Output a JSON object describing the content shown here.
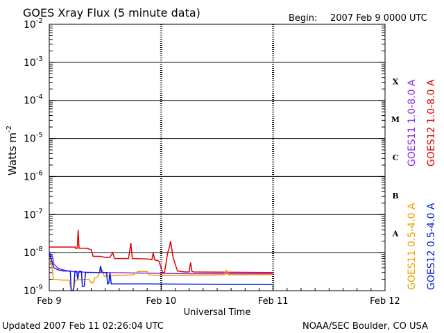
{
  "header": {
    "title": "GOES Xray Flux (5 minute data)",
    "begin_label": "Begin:",
    "begin_value": "2007 Feb 9 0000 UTC"
  },
  "footer": {
    "updated": "Updated 2007 Feb 11 02:26:04 UTC",
    "source": "NOAA/SEC Boulder, CO USA"
  },
  "chart_data": {
    "type": "line",
    "title": "GOES Xray Flux (5 minute data)",
    "xlabel": "Universal Time",
    "ylabel": "Watts m",
    "ylabel_superscript": "-2",
    "x_unit": "hours since 2007 Feb 9 0000 UTC",
    "xlim": [
      0,
      72
    ],
    "x_ticks": [
      {
        "x": 0,
        "label": "Feb 9"
      },
      {
        "x": 24,
        "label": "Feb 10"
      },
      {
        "x": 48,
        "label": "Feb 11"
      },
      {
        "x": 72,
        "label": "Feb 12"
      }
    ],
    "yscale": "log",
    "ylim": [
      1e-09,
      0.01
    ],
    "y_ticks": [
      {
        "exp": -9,
        "label": "10",
        "sup": "-9"
      },
      {
        "exp": -8,
        "label": "10",
        "sup": "-8"
      },
      {
        "exp": -7,
        "label": "10",
        "sup": "-7"
      },
      {
        "exp": -6,
        "label": "10",
        "sup": "-6"
      },
      {
        "exp": -5,
        "label": "10",
        "sup": "-5"
      },
      {
        "exp": -4,
        "label": "10",
        "sup": "-4"
      },
      {
        "exp": -3,
        "label": "10",
        "sup": "-3"
      },
      {
        "exp": -2,
        "label": "10",
        "sup": "-2"
      }
    ],
    "flare_classes": [
      {
        "label": "A",
        "exp": -7.5
      },
      {
        "label": "B",
        "exp": -6.5
      },
      {
        "label": "C",
        "exp": -5.5
      },
      {
        "label": "M",
        "exp": -4.5
      },
      {
        "label": "X",
        "exp": -3.5
      }
    ],
    "grid": "horizontal lines at each decade, dashed verticals at day boundaries",
    "legend": [
      {
        "name": "GOES11 1.0-8.0 A",
        "color": "#8b2be2"
      },
      {
        "name": "GOES12 1.0-8.0 A",
        "color": "#e00000"
      },
      {
        "name": "GOES11 0.5-4.0 A",
        "color": "#f0a000"
      },
      {
        "name": "GOES12 0.5-4.0 A",
        "color": "#0018e0"
      }
    ],
    "series": [
      {
        "name": "GOES12 1.0-8.0 A",
        "color": "#e00000",
        "points": [
          [
            0,
            1.4e-08
          ],
          [
            5.6,
            1.4e-08
          ],
          [
            5.6,
            1.3e-08
          ],
          [
            6,
            1.3e-08
          ],
          [
            6.2,
            4e-08
          ],
          [
            6.4,
            1.3e-08
          ],
          [
            8,
            1.3e-08
          ],
          [
            9,
            1.2e-08
          ],
          [
            9.4,
            8e-09
          ],
          [
            11,
            8e-09
          ],
          [
            12,
            7.5e-09
          ],
          [
            13,
            7.5e-09
          ],
          [
            13.6,
            1e-08
          ],
          [
            14,
            7e-09
          ],
          [
            16,
            7e-09
          ],
          [
            17,
            7e-09
          ],
          [
            17.5,
            1.8e-08
          ],
          [
            17.8,
            7e-09
          ],
          [
            21,
            6.8e-09
          ],
          [
            22,
            6.5e-09
          ],
          [
            22.3,
            1e-08
          ],
          [
            22.6,
            6.5e-09
          ],
          [
            23.5,
            6e-09
          ],
          [
            24.3,
            3e-09
          ],
          [
            24.7,
            3e-09
          ],
          [
            25,
            5e-09
          ],
          [
            25.4,
            1e-08
          ],
          [
            25.8,
            1.4e-08
          ],
          [
            26,
            2e-08
          ],
          [
            26.2,
            1.5e-08
          ],
          [
            26.5,
            8e-09
          ],
          [
            27,
            5e-09
          ],
          [
            27.5,
            3.3e-09
          ],
          [
            29,
            3.1e-09
          ],
          [
            30,
            3.1e-09
          ],
          [
            30.3,
            5.5e-09
          ],
          [
            30.6,
            3.2e-09
          ],
          [
            31,
            3.1e-09
          ],
          [
            48,
            3e-09
          ]
        ]
      },
      {
        "name": "GOES11 1.0-8.0 A",
        "color": "#8b2be2",
        "points": [
          [
            0,
            1e-08
          ],
          [
            0.7,
            8e-09
          ],
          [
            1,
            5e-09
          ],
          [
            2,
            3.8e-09
          ],
          [
            4,
            3.3e-09
          ],
          [
            6,
            3.1e-09
          ],
          [
            10,
            3e-09
          ],
          [
            20,
            2.9e-09
          ],
          [
            30,
            2.8e-09
          ],
          [
            48,
            2.8e-09
          ]
        ]
      },
      {
        "name": "GOES11 0.5-4.0 A",
        "color": "#f0a000",
        "points": [
          [
            0,
            6e-09
          ],
          [
            0.5,
            5e-09
          ],
          [
            0.9,
            2e-09
          ],
          [
            2.6,
            1.9e-09
          ],
          [
            4.3,
            1.9e-09
          ],
          [
            4.6,
            1.2e-09
          ],
          [
            4.9,
            1e-09
          ],
          [
            5.3,
            1.2e-09
          ],
          [
            5.6,
            1.9e-09
          ],
          [
            8.5,
            2e-09
          ],
          [
            9,
            1.6e-09
          ],
          [
            9.4,
            1.6e-09
          ],
          [
            9.8,
            2.2e-09
          ],
          [
            10.4,
            2.3e-09
          ],
          [
            11,
            3.5e-09
          ],
          [
            11.4,
            3.5e-09
          ],
          [
            11.8,
            2.4e-09
          ],
          [
            14,
            2.5e-09
          ],
          [
            18,
            2.6e-09
          ],
          [
            19,
            3.2e-09
          ],
          [
            21,
            3.2e-09
          ],
          [
            21.4,
            2.6e-09
          ],
          [
            24,
            2.5e-09
          ],
          [
            37.5,
            2.6e-09
          ],
          [
            38,
            3.4e-09
          ],
          [
            38.5,
            2.6e-09
          ],
          [
            48,
            2.6e-09
          ]
        ]
      },
      {
        "name": "GOES12 0.5-4.0 A",
        "color": "#0018e0",
        "points": [
          [
            0,
            1e-08
          ],
          [
            0.5,
            6e-09
          ],
          [
            1,
            4e-09
          ],
          [
            2,
            3.5e-09
          ],
          [
            3,
            3.3e-09
          ],
          [
            4.5,
            3.3e-09
          ],
          [
            4.7,
            1e-09
          ],
          [
            5.2,
            1e-09
          ],
          [
            5.5,
            3.2e-09
          ],
          [
            5.9,
            3.2e-09
          ],
          [
            6.1,
            2e-09
          ],
          [
            6.4,
            3.2e-09
          ],
          [
            6.9,
            3.2e-09
          ],
          [
            7.1,
            1.3e-09
          ],
          [
            7.5,
            1.3e-09
          ],
          [
            7.8,
            3e-09
          ],
          [
            10.8,
            3e-09
          ],
          [
            11,
            4.5e-09
          ],
          [
            11.3,
            3e-09
          ],
          [
            12.3,
            3e-09
          ],
          [
            12.5,
            1.5e-09
          ],
          [
            12.8,
            1.6e-09
          ],
          [
            13,
            3e-09
          ],
          [
            13.3,
            1.5e-09
          ],
          [
            15,
            1.5e-09
          ],
          [
            22,
            1.5e-09
          ],
          [
            48,
            1.45e-09
          ]
        ]
      }
    ]
  }
}
